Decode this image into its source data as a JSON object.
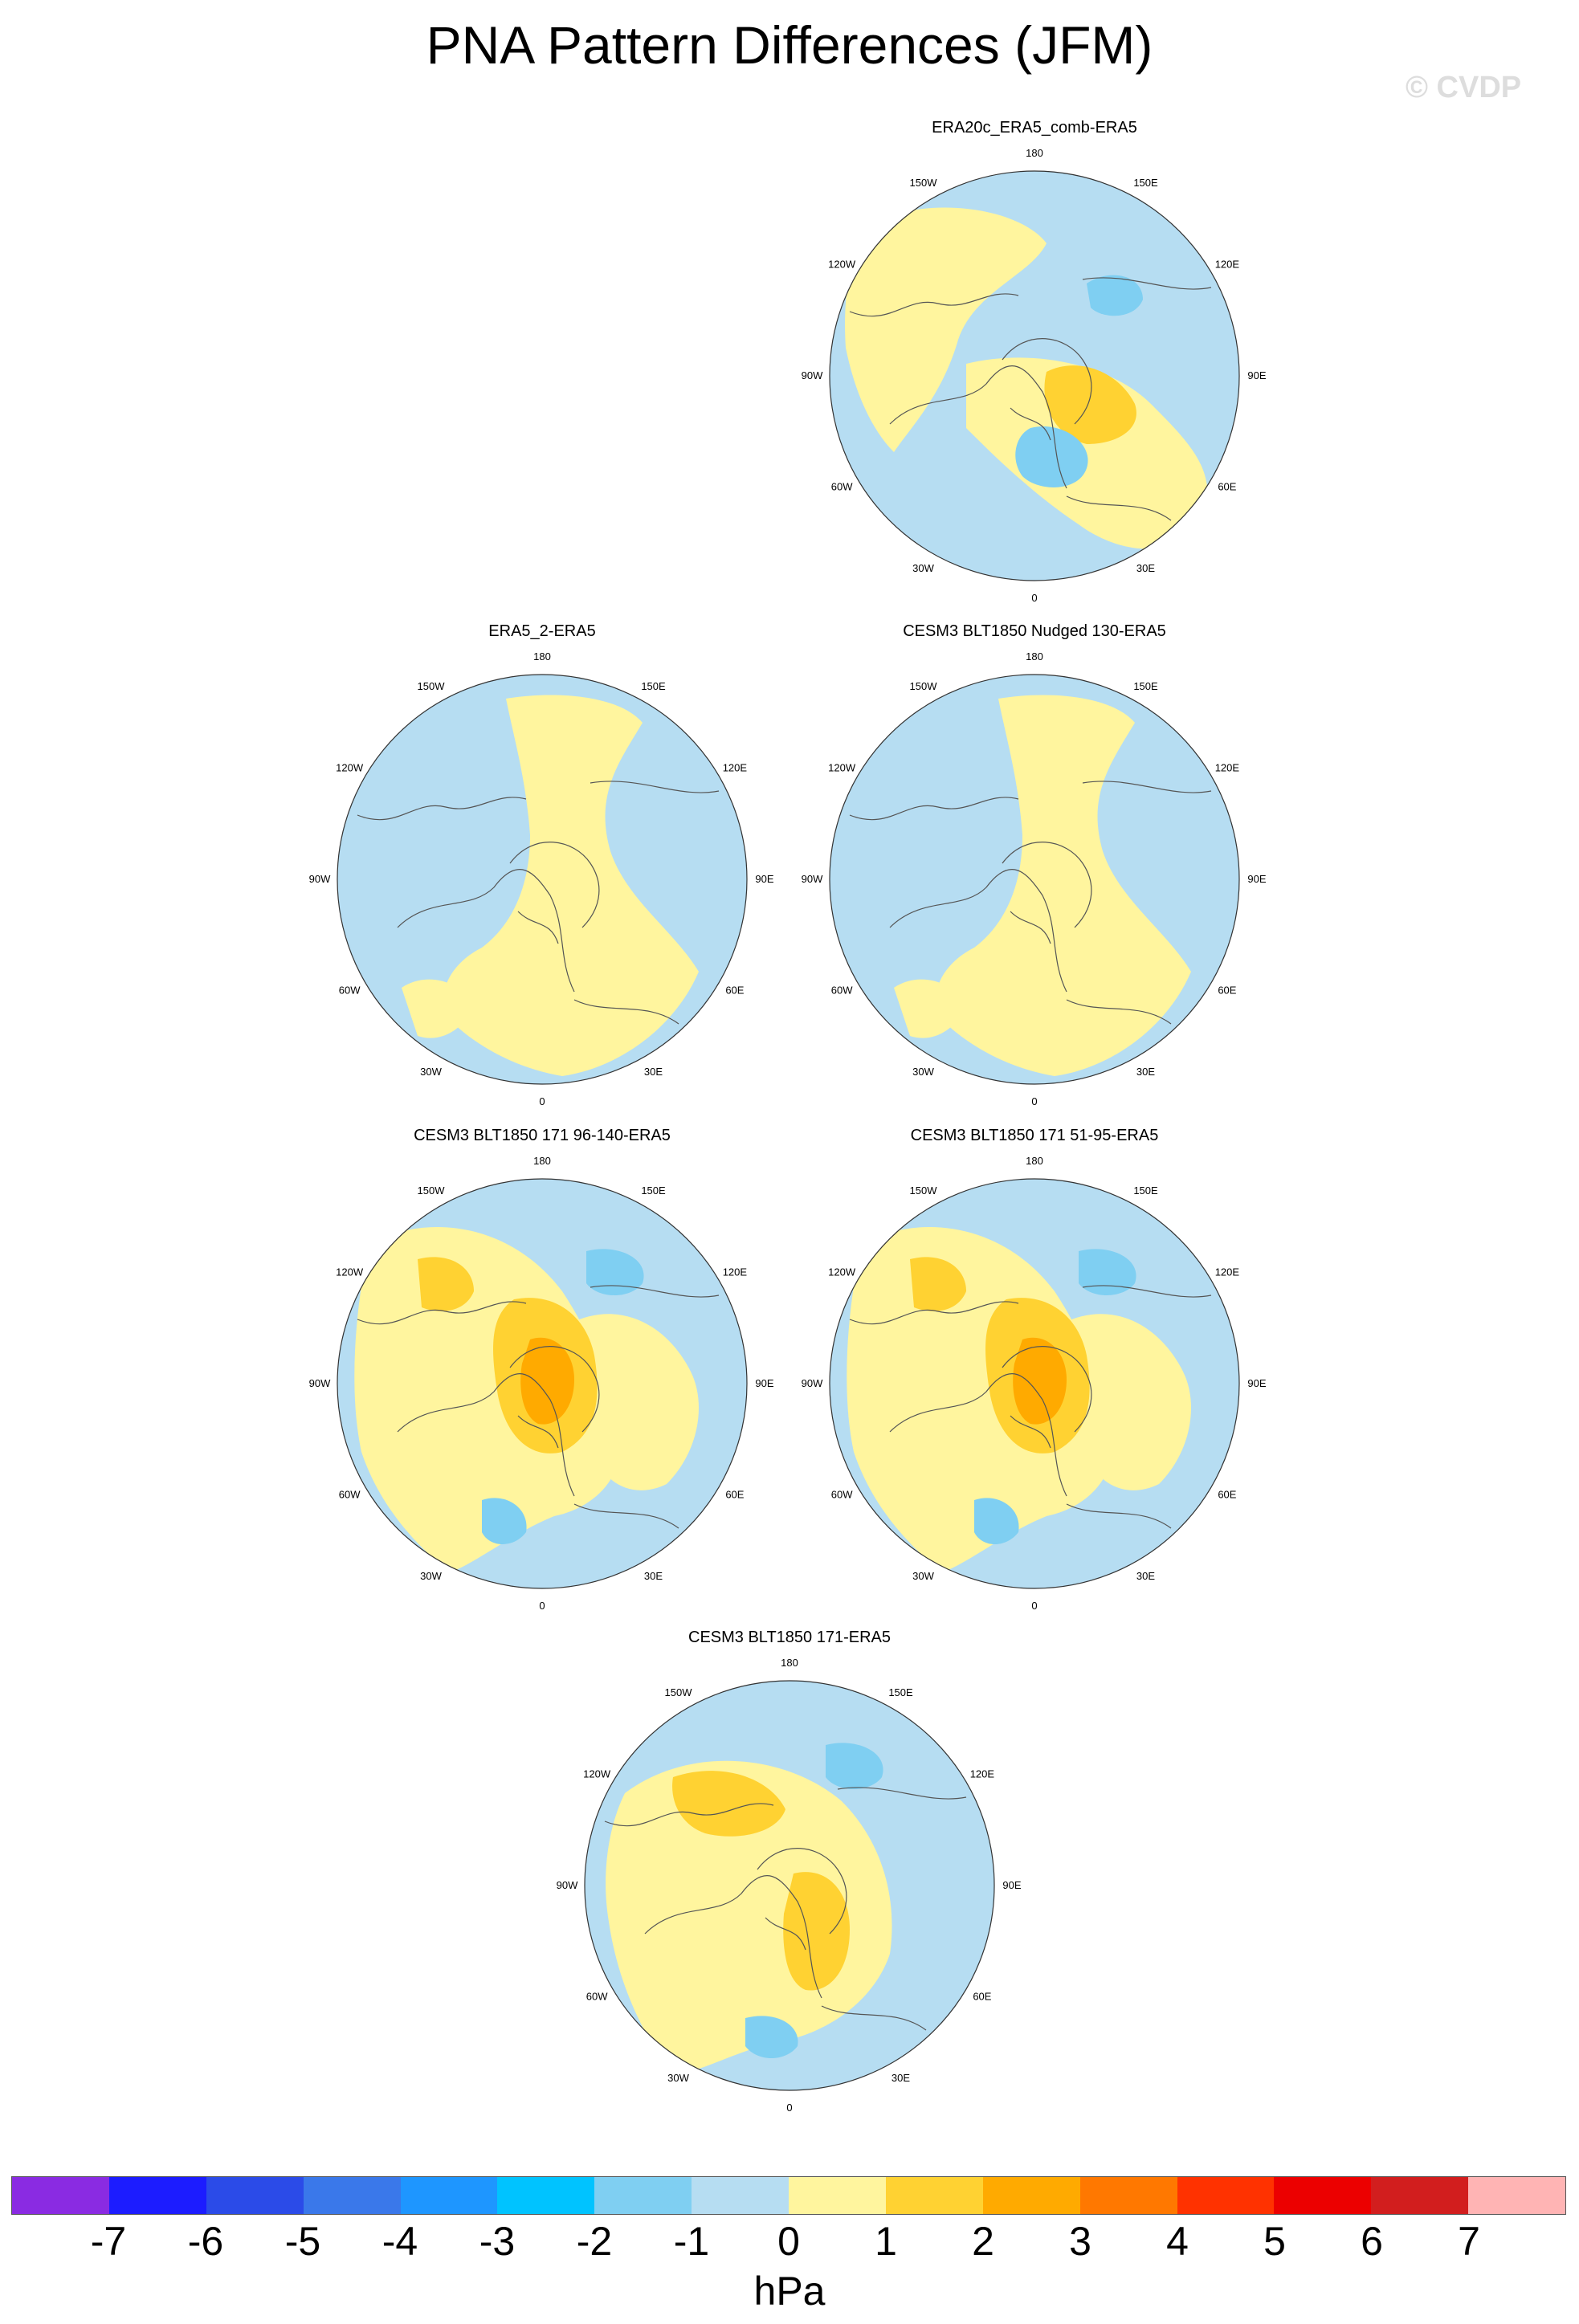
{
  "title": "PNA Pattern Differences (JFM)",
  "watermark": "© CVDP",
  "lon_labels": [
    "180",
    "150E",
    "120E",
    "90E",
    "60E",
    "30E",
    "0",
    "30W",
    "60W",
    "90W",
    "120W",
    "150W"
  ],
  "panels": [
    {
      "id": "era20c",
      "title": "ERA20c_ERA5_comb-ERA5",
      "pattern": "weak-mixed"
    },
    {
      "id": "era5_2",
      "title": "ERA5_2-ERA5",
      "pattern": "near-zero"
    },
    {
      "id": "nudged130",
      "title": "CESM3 BLT1850 Nudged 130-ERA5",
      "pattern": "near-zero"
    },
    {
      "id": "b96_140",
      "title": "CESM3 BLT1850 171 96-140-ERA5",
      "pattern": "strong"
    },
    {
      "id": "b51_95",
      "title": "CESM3 BLT1850 171 51-95-ERA5",
      "pattern": "strong"
    },
    {
      "id": "b171",
      "title": "CESM3 BLT1850 171-ERA5",
      "pattern": "moderate"
    }
  ],
  "colorbar": {
    "unit": "hPa",
    "labels": [
      "-7",
      "-6",
      "-5",
      "-4",
      "-3",
      "-2",
      "-1",
      "0",
      "1",
      "2",
      "3",
      "4",
      "5",
      "6",
      "7"
    ],
    "colors": [
      "#8a2be2",
      "#1c1cff",
      "#2b4be8",
      "#3a78ea",
      "#1e96ff",
      "#00c3ff",
      "#7fcff2",
      "#b6ddf2",
      "#fff59e",
      "#ffd232",
      "#ffaa00",
      "#ff7800",
      "#ff3200",
      "#ec0000",
      "#d21e1e",
      "#ffb4b4"
    ]
  }
}
